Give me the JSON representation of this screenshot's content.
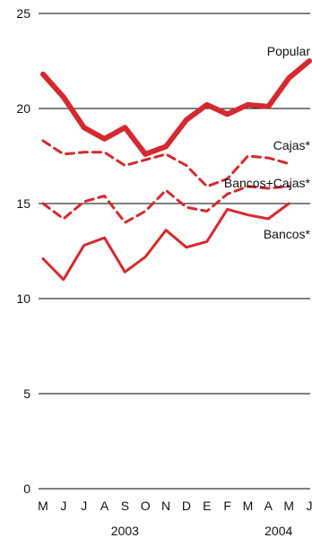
{
  "chart_data": {
    "type": "line",
    "title": "",
    "xlabel": "",
    "ylabel": "",
    "ylim": [
      0,
      25
    ],
    "yticks": [
      0,
      5,
      10,
      15,
      20,
      25
    ],
    "grid": "horizontal",
    "x": [
      "M",
      "J",
      "J",
      "A",
      "S",
      "O",
      "N",
      "D",
      "E",
      "F",
      "M",
      "A",
      "M",
      "J"
    ],
    "years": [
      {
        "label": "2003",
        "center_index": 4
      },
      {
        "label": "2004",
        "center_index": 11.5
      }
    ],
    "series": [
      {
        "name": "Popular",
        "style": "thick-solid",
        "color": "#d42a2f",
        "values": [
          21.8,
          20.6,
          19.0,
          18.4,
          19.0,
          17.6,
          18.0,
          19.4,
          20.2,
          19.7,
          20.2,
          20.1,
          21.6,
          22.5
        ]
      },
      {
        "name": "Cajas*",
        "style": "dashed",
        "color": "#d42a2f",
        "values": [
          18.3,
          17.6,
          17.7,
          17.7,
          17.0,
          17.3,
          17.6,
          17.0,
          15.9,
          16.3,
          17.5,
          17.4,
          17.1,
          null
        ]
      },
      {
        "name": "Bancos+Cajas*",
        "style": "dashed",
        "color": "#d42a2f",
        "values": [
          15.0,
          14.2,
          15.1,
          15.4,
          14.0,
          14.6,
          15.7,
          14.8,
          14.6,
          15.5,
          15.9,
          15.8,
          15.9,
          null
        ]
      },
      {
        "name": "Bancos*",
        "style": "solid",
        "color": "#d42a2f",
        "values": [
          12.1,
          11.0,
          12.8,
          13.2,
          11.4,
          12.2,
          13.6,
          12.7,
          13.0,
          14.7,
          14.4,
          14.2,
          15.0,
          null
        ]
      }
    ]
  }
}
